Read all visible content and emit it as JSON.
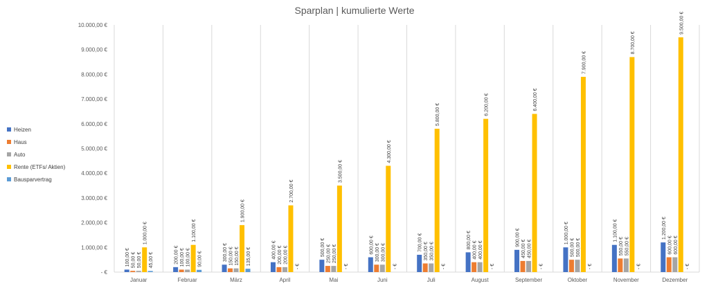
{
  "chart_data": {
    "type": "bar",
    "title": "Sparplan | kumulierte Werte",
    "categories": [
      "Januar",
      "Februar",
      "März",
      "April",
      "Mai",
      "Juni",
      "Juli",
      "August",
      "September",
      "Oktober",
      "November",
      "Dezember"
    ],
    "ylim": [
      0,
      10000
    ],
    "yticks": [
      0,
      1000,
      2000,
      3000,
      4000,
      5000,
      6000,
      7000,
      8000,
      9000,
      10000
    ],
    "ytick_labels": [
      " -   €",
      "1.000,00 €",
      "2.000,00 €",
      "3.000,00 €",
      "4.000,00 €",
      "5.000,00 €",
      "6.000,00 €",
      "7.000,00 €",
      "8.000,00 €",
      "9.000,00 €",
      "10.000,00 €"
    ],
    "grid": "vertical category separators",
    "legend_position": "left",
    "series": [
      {
        "name": "Heizen",
        "color": "#4472C4",
        "values": [
          100,
          200,
          300,
          400,
          500,
          600,
          700,
          800,
          900,
          1000,
          1100,
          1200
        ],
        "labels": [
          "100,00 €",
          "200,00 €",
          "300,00 €",
          "400,00 €",
          "500,00 €",
          "600,00 €",
          "700,00 €",
          "800,00 €",
          "900,00 €",
          "1.000,00 €",
          "1.100,00 €",
          "1.200,00 €"
        ]
      },
      {
        "name": "Haus",
        "color": "#ED7D31",
        "values": [
          50,
          100,
          150,
          200,
          250,
          300,
          350,
          400,
          450,
          500,
          550,
          600
        ],
        "labels": [
          "50,00 €",
          "100,00 €",
          "150,00 €",
          "200,00 €",
          "250,00 €",
          "300,00 €",
          "350,00 €",
          "400,00 €",
          "450,00 €",
          "500,00 €",
          "550,00 €",
          "600,00 €"
        ]
      },
      {
        "name": "Auto",
        "color": "#A5A5A5",
        "values": [
          50,
          100,
          150,
          200,
          250,
          300,
          350,
          400,
          450,
          500,
          550,
          600
        ],
        "labels": [
          "50,00 €",
          "100,00 €",
          "150,00 €",
          "200,00 €",
          "250,00 €",
          "300,00 €",
          "350,00 €",
          "400,00 €",
          "450,00 €",
          "500,00 €",
          "550,00 €",
          "600,00 €"
        ]
      },
      {
        "name": "Rente (ETFs/ Aktien)",
        "color": "#FFC000",
        "values": [
          1000,
          1100,
          1900,
          2700,
          3500,
          4300,
          5800,
          6200,
          6400,
          7900,
          8700,
          9500
        ],
        "labels": [
          "1.000,00 €",
          "1.100,00 €",
          "1.900,00 €",
          "2.700,00 €",
          "3.500,00 €",
          "4.300,00 €",
          "5.800,00 €",
          "6.200,00 €",
          "6.400,00 €",
          "7.900,00 €",
          "8.700,00 €",
          "9.500,00 €"
        ]
      },
      {
        "name": "Bausparvertrag",
        "color": "#5B9BD5",
        "values": [
          45,
          90,
          135,
          0,
          0,
          0,
          0,
          0,
          0,
          0,
          0,
          0
        ],
        "labels": [
          "45,00 €",
          "90,00 €",
          "135,00 €",
          " -   €",
          " -   €",
          " -   €",
          " -   €",
          " -   €",
          " -   €",
          " -   €",
          " -   €",
          " -   €"
        ]
      }
    ]
  }
}
